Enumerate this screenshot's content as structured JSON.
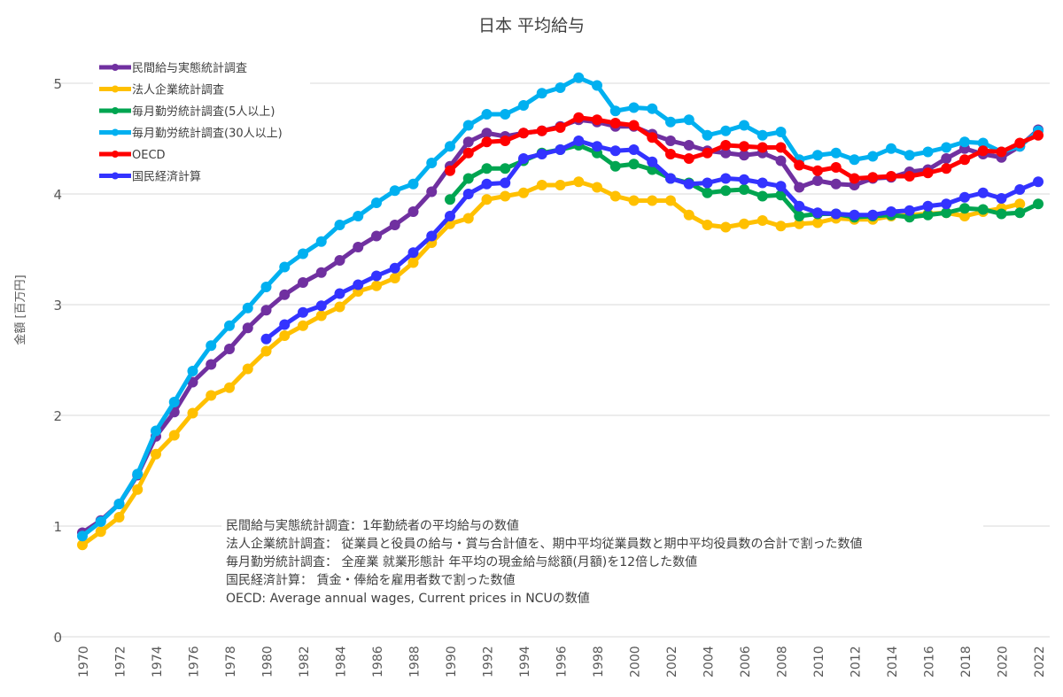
{
  "chart_data": {
    "type": "line",
    "title": "日本 平均給与",
    "xlabel": "",
    "ylabel": "金額 [百万円]",
    "xlim": [
      1970,
      2022
    ],
    "ylim": [
      0,
      5.2
    ],
    "yticks": [
      0,
      1,
      2,
      3,
      4,
      5
    ],
    "xticks": [
      1970,
      1972,
      1974,
      1976,
      1978,
      1980,
      1982,
      1984,
      1986,
      1988,
      1990,
      1992,
      1994,
      1996,
      1998,
      2000,
      2002,
      2004,
      2006,
      2008,
      2010,
      2012,
      2014,
      2016,
      2018,
      2020,
      2022
    ],
    "grid": true,
    "legend_position": "top-left",
    "series": [
      {
        "name": "民間給与実態統計調査",
        "color": "#7030a0",
        "start": 1970,
        "values": [
          0.94,
          1.05,
          1.2,
          1.46,
          1.81,
          2.03,
          2.3,
          2.46,
          2.6,
          2.79,
          2.95,
          3.09,
          3.2,
          3.29,
          3.4,
          3.52,
          3.62,
          3.72,
          3.84,
          4.02,
          4.25,
          4.47,
          4.55,
          4.52,
          4.55,
          4.57,
          4.61,
          4.67,
          4.65,
          4.61,
          4.61,
          4.54,
          4.48,
          4.44,
          4.39,
          4.37,
          4.35,
          4.37,
          4.3,
          4.06,
          4.12,
          4.09,
          4.08,
          4.14,
          4.15,
          4.2,
          4.22,
          4.32,
          4.41,
          4.36,
          4.33,
          4.43,
          4.58
        ]
      },
      {
        "name": "法人企業統計調査",
        "color": "#ffc000",
        "start": 1970,
        "values": [
          0.83,
          0.95,
          1.08,
          1.33,
          1.65,
          1.82,
          2.02,
          2.18,
          2.25,
          2.42,
          2.58,
          2.72,
          2.81,
          2.9,
          2.98,
          3.12,
          3.17,
          3.24,
          3.38,
          3.56,
          3.73,
          3.78,
          3.95,
          3.98,
          4.01,
          4.08,
          4.08,
          4.11,
          4.06,
          3.98,
          3.94,
          3.94,
          3.94,
          3.81,
          3.72,
          3.7,
          3.73,
          3.76,
          3.71,
          3.73,
          3.74,
          3.78,
          3.77,
          3.77,
          3.8,
          3.81,
          3.82,
          3.83,
          3.8,
          3.84,
          3.87,
          3.91
        ]
      },
      {
        "name": "毎月勤労統計調査(5人以上)",
        "color": "#00a550",
        "start": 1990,
        "values": [
          3.95,
          4.14,
          4.23,
          4.23,
          4.3,
          4.37,
          4.4,
          4.44,
          4.37,
          4.25,
          4.27,
          4.22,
          4.14,
          4.1,
          4.01,
          4.03,
          4.04,
          3.98,
          3.99,
          3.8,
          3.82,
          3.82,
          3.79,
          3.8,
          3.81,
          3.79,
          3.81,
          3.83,
          3.87,
          3.86,
          3.82,
          3.83,
          3.91
        ]
      },
      {
        "name": "毎月勤労統計調査(30人以上)",
        "color": "#00b0f0",
        "start": 1970,
        "values": [
          0.91,
          1.04,
          1.2,
          1.47,
          1.86,
          2.12,
          2.4,
          2.63,
          2.81,
          2.97,
          3.16,
          3.34,
          3.46,
          3.57,
          3.72,
          3.8,
          3.92,
          4.03,
          4.09,
          4.28,
          4.43,
          4.62,
          4.72,
          4.72,
          4.8,
          4.91,
          4.96,
          5.05,
          4.98,
          4.75,
          4.78,
          4.77,
          4.65,
          4.67,
          4.53,
          4.57,
          4.62,
          4.53,
          4.56,
          4.31,
          4.35,
          4.37,
          4.31,
          4.34,
          4.41,
          4.35,
          4.38,
          4.42,
          4.47,
          4.46,
          4.38,
          4.43,
          4.57
        ]
      },
      {
        "name": "OECD",
        "color": "#ff0000",
        "start": 1990,
        "values": [
          4.21,
          4.37,
          4.47,
          4.48,
          4.55,
          4.57,
          4.6,
          4.69,
          4.67,
          4.64,
          4.62,
          4.51,
          4.36,
          4.32,
          4.37,
          4.44,
          4.43,
          4.42,
          4.42,
          4.26,
          4.21,
          4.24,
          4.14,
          4.15,
          4.16,
          4.16,
          4.19,
          4.23,
          4.31,
          4.39,
          4.38,
          4.46,
          4.53
        ]
      },
      {
        "name": "国民経済計算",
        "color": "#3333ff",
        "start": 1980,
        "values": [
          2.69,
          2.82,
          2.93,
          2.99,
          3.1,
          3.18,
          3.26,
          3.33,
          3.47,
          3.62,
          3.8,
          4.0,
          4.09,
          4.1,
          4.32,
          4.36,
          4.4,
          4.48,
          4.43,
          4.39,
          4.4,
          4.29,
          4.14,
          4.09,
          4.1,
          4.14,
          4.13,
          4.1,
          4.07,
          3.89,
          3.83,
          3.82,
          3.81,
          3.81,
          3.84,
          3.85,
          3.89,
          3.91,
          3.97,
          4.01,
          3.96,
          4.04,
          4.11
        ]
      }
    ],
    "annotations": [
      "民間給与実態統計調査：1年勤続者の平均給与の数値",
      "法人企業統計調査： 従業員と役員の給与・賞与合計値を、期中平均従業員数と期中平均役員数の合計で割った数値",
      "毎月勤労統計調査： 全産業 就業形態計 年平均の現金給与総額(月額)を12倍した数値",
      "国民経済計算： 賃金・俸給を雇用者数で割った数値",
      "OECD: Average annual wages, Current prices in NCUの数値"
    ]
  }
}
